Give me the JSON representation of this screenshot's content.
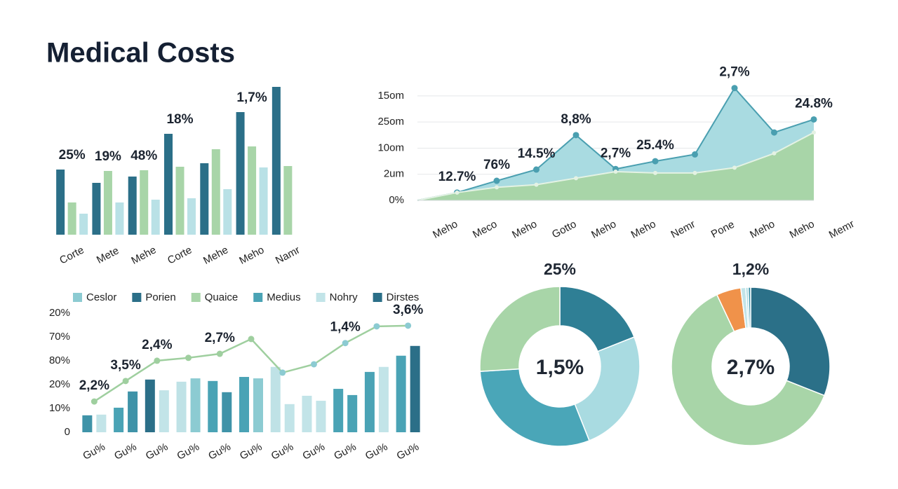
{
  "title": "Medical Costs",
  "chart_data": [
    {
      "type": "bar",
      "categories": [
        "Corte",
        "Mete",
        "Mehe",
        "Corte",
        "Mehe",
        "Meho",
        "Namr"
      ],
      "series": [
        {
          "color": "#2b6f88",
          "values": [
            93,
            74,
            83,
            144,
            102,
            175,
            211
          ]
        },
        {
          "color": "#a8d5a8",
          "values": [
            46,
            91,
            92,
            97,
            122,
            126,
            98
          ]
        },
        {
          "color": "#b9e1e6",
          "values": [
            30,
            46,
            50,
            52,
            65,
            96,
            null
          ]
        }
      ],
      "annotations": [
        "25%",
        "19%",
        "48%",
        "18%",
        null,
        "1,7%",
        null
      ],
      "ylim": [
        0,
        215
      ]
    },
    {
      "type": "area",
      "categories": [
        "Meho",
        "Meco",
        "Meho",
        "Gotto",
        "Meho",
        "Meho",
        "Nemr",
        "Pone",
        "Meho",
        "Meho",
        "Memr"
      ],
      "series": [
        {
          "color": "#4a9fb0",
          "fill": "#a9dbe1",
          "values": [
            0,
            0.3,
            0.75,
            1.18,
            2.5,
            1.2,
            1.5,
            1.76,
            4.3,
            2.6,
            3.1
          ]
        },
        {
          "color": "#e4f2e4",
          "fill": "#a8d5a8",
          "values": [
            0,
            0.3,
            0.5,
            0.6,
            0.85,
            1.1,
            1.05,
            1.05,
            1.25,
            1.8,
            2.6
          ]
        }
      ],
      "annotations": [
        null,
        "12.7%",
        "76%",
        "14.5%",
        "8,8%",
        "2,7%",
        "25.4%",
        null,
        "2,7%",
        null,
        "24.8%"
      ],
      "ylim": [
        0,
        4.4
      ],
      "yticks": [
        {
          "value": 4,
          "label": "15om"
        },
        {
          "value": 3,
          "label": "25om"
        },
        {
          "value": 2,
          "label": "10om"
        },
        {
          "value": 1,
          "label": "2um"
        },
        {
          "value": 0,
          "label": "0%"
        }
      ],
      "grid": true
    },
    {
      "type": "combo",
      "categories": [
        "Gu%",
        "Gu%",
        "Gu%",
        "Gu%",
        "Gu%",
        "Gu%",
        "Gu%",
        "Gu%",
        "Gu%",
        "Gu%",
        "Gu%"
      ],
      "legend": [
        {
          "name": "Ceslor",
          "color": "#8ccbd2"
        },
        {
          "name": "Porien",
          "color": "#2b6f88"
        },
        {
          "name": "Quaice",
          "color": "#a8d5a8"
        },
        {
          "name": "Medius",
          "color": "#4aa3b5"
        },
        {
          "name": "Nohry",
          "color": "#c2e4e8"
        },
        {
          "name": "Dirstes",
          "color": "#2b6f88"
        }
      ],
      "series": [
        {
          "colors": [
            "#3f93a8",
            "#4aa3b5",
            "#2b6f88",
            "#bfe2e6",
            "#4aa3b5",
            "#4aa3b5",
            "#bfe2e6",
            "#c2e4e8",
            "#4aa3b5",
            "#4aa3b5",
            "#4aa3b5"
          ],
          "values": [
            0.71,
            1.03,
            2.21,
            2.12,
            2.15,
            2.32,
            2.74,
            1.53,
            1.82,
            2.53,
            3.21
          ]
        },
        {
          "colors": [
            "#c2e4e8",
            "#3f93a8",
            "#c2e4e8",
            "#8ccbd2",
            "#3f93a8",
            "#8ccbd2",
            "#c2e4e8",
            "#c2e4e8",
            "#4aa3b5",
            "#c2e4e8",
            "#2b6f88"
          ],
          "values": [
            0.74,
            1.71,
            1.76,
            2.26,
            1.68,
            2.26,
            1.18,
            1.32,
            1.56,
            2.74,
            3.62
          ]
        },
        {
          "type": "line",
          "color": "#9fcf9f",
          "marker": "#8ccbd2",
          "values": [
            1.29,
            2.15,
            3.0,
            3.12,
            3.29,
            3.91,
            2.5,
            2.85,
            3.74,
            4.44,
            4.47
          ]
        }
      ],
      "annotations": [
        "2,2%",
        "3,5%",
        "2,4%",
        null,
        "2,7%",
        null,
        null,
        null,
        "1,4%",
        null,
        "3,6%"
      ],
      "ylim": [
        0,
        5.2
      ],
      "yticks": [
        {
          "value": 5,
          "label": "20%"
        },
        {
          "value": 4,
          "label": "70%"
        },
        {
          "value": 3,
          "label": "80%"
        },
        {
          "value": 2,
          "label": "20%"
        },
        {
          "value": 1,
          "label": "10%"
        },
        0
      ]
    },
    {
      "type": "pie",
      "title": "25%",
      "center_label": "1,5%",
      "values": [
        19,
        25,
        30,
        26
      ],
      "colors": [
        "#2f7f95",
        "#a9dbe1",
        "#4aa6b8",
        "#a8d5a8"
      ]
    },
    {
      "type": "pie",
      "title": "1,2%",
      "center_label": "2,7%",
      "values": [
        31,
        62,
        5,
        1,
        0.5,
        0.5
      ],
      "colors": [
        "#2b7088",
        "#a8d5a8",
        "#f0924a",
        "#c2e4e8",
        "#a9dbe1",
        "#3f93a8"
      ]
    }
  ]
}
